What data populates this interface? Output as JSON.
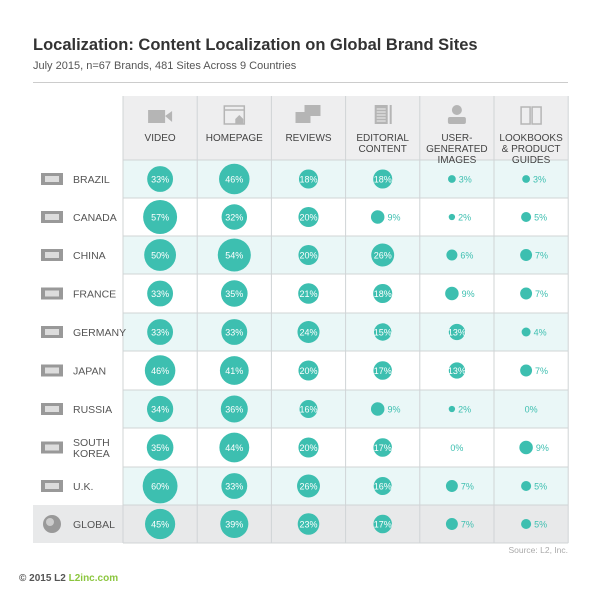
{
  "chart_data": {
    "type": "table",
    "title": "Localization: Content Localization on Global Brand Sites",
    "subtitle": "July 2015, n=67 Brands, 481 Sites Across 9 Countries",
    "columns": [
      {
        "label": [
          "VIDEO"
        ],
        "icon": "video-camera-icon"
      },
      {
        "label": [
          "HOMEPAGE"
        ],
        "icon": "homepage-icon"
      },
      {
        "label": [
          "REVIEWS"
        ],
        "icon": "speech-bubbles-icon"
      },
      {
        "label": [
          "EDITORIAL",
          "CONTENT"
        ],
        "icon": "document-icon"
      },
      {
        "label": [
          "USER-",
          "GENERATED",
          "IMAGES"
        ],
        "icon": "user-icon"
      },
      {
        "label": [
          "LOOKBOOKS",
          "& PRODUCT",
          "GUIDES"
        ],
        "icon": "book-icon"
      }
    ],
    "rows": [
      {
        "label": [
          "BRAZIL"
        ],
        "icon": "brazil-flag-icon",
        "values": [
          33,
          46,
          18,
          18,
          3,
          3
        ]
      },
      {
        "label": [
          "CANADA"
        ],
        "icon": "canada-flag-icon",
        "values": [
          57,
          32,
          20,
          9,
          2,
          5
        ]
      },
      {
        "label": [
          "CHINA"
        ],
        "icon": "china-flag-icon",
        "values": [
          50,
          54,
          20,
          26,
          6,
          7
        ]
      },
      {
        "label": [
          "FRANCE"
        ],
        "icon": "france-flag-icon",
        "values": [
          33,
          35,
          21,
          18,
          9,
          7
        ]
      },
      {
        "label": [
          "GERMANY"
        ],
        "icon": "germany-flag-icon",
        "values": [
          33,
          33,
          24,
          15,
          13,
          4
        ]
      },
      {
        "label": [
          "JAPAN"
        ],
        "icon": "japan-flag-icon",
        "values": [
          46,
          41,
          20,
          17,
          13,
          7
        ]
      },
      {
        "label": [
          "RUSSIA"
        ],
        "icon": "russia-flag-icon",
        "values": [
          34,
          36,
          16,
          9,
          2,
          0
        ]
      },
      {
        "label": [
          "SOUTH",
          "KOREA"
        ],
        "icon": "south-korea-flag-icon",
        "values": [
          35,
          44,
          20,
          17,
          0,
          9
        ]
      },
      {
        "label": [
          "U.K."
        ],
        "icon": "uk-flag-icon",
        "values": [
          60,
          33,
          26,
          16,
          7,
          5
        ]
      },
      {
        "label": [
          "GLOBAL"
        ],
        "icon": "globe-icon",
        "values": [
          45,
          39,
          23,
          17,
          7,
          5
        ]
      }
    ],
    "unit": "%",
    "colors": {
      "bubble": "#3dbfb0",
      "alt_row": "#eaf7f7",
      "global_row": "#e8e9ea",
      "header": "#eeeeef",
      "grid": "#d0d4d6"
    }
  },
  "source": "Source: L2, Inc.",
  "footer": {
    "copyright": "© 2015 L2",
    "site": "L2inc.com"
  }
}
